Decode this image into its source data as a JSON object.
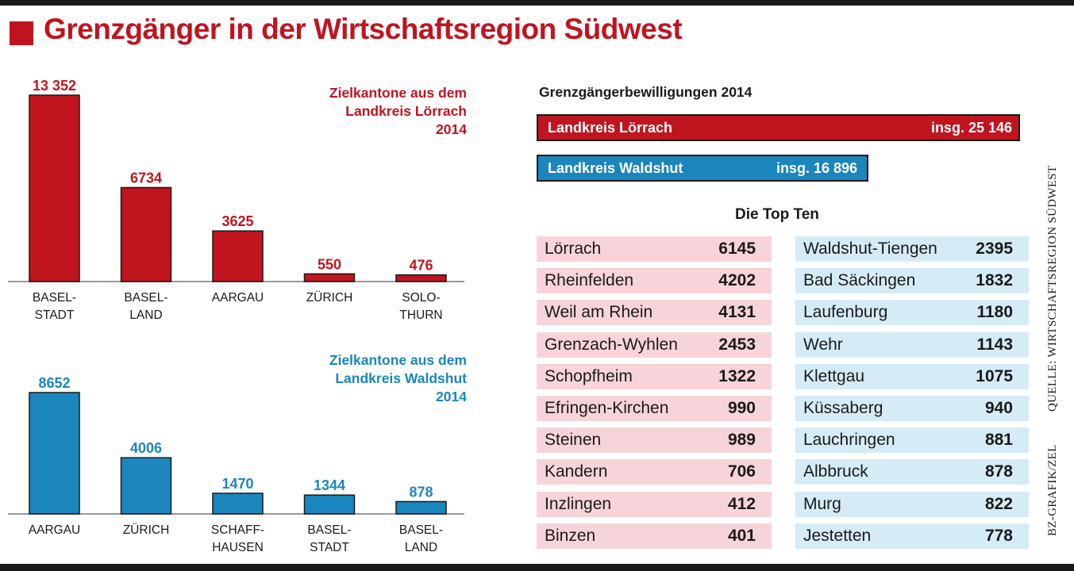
{
  "title": "Grenzgänger in der Wirtschaftsregion Südwest",
  "colors": {
    "red": "#c0141f",
    "blue": "#1a86bd",
    "pink": "#f7d4da",
    "lightblue": "#d5ecf7"
  },
  "chart_data": [
    {
      "type": "bar",
      "title_lines": [
        "Zielkantone aus dem",
        "Landkreis Lörrach",
        "2014"
      ],
      "categories": [
        [
          "BASEL-",
          "STADT"
        ],
        [
          "BASEL-",
          "LAND"
        ],
        [
          "AARGAU"
        ],
        [
          "ZÜRICH"
        ],
        [
          "SOLO-",
          "THURN"
        ]
      ],
      "values": [
        13352,
        6734,
        3625,
        550,
        476
      ],
      "value_labels": [
        "13 352",
        "6734",
        "3625",
        "550",
        "476"
      ],
      "color": "#c0141f"
    },
    {
      "type": "bar",
      "title_lines": [
        "Zielkantone aus dem",
        "Landkreis Waldshut",
        "2014"
      ],
      "categories": [
        [
          "AARGAU"
        ],
        [
          "ZÜRICH"
        ],
        [
          "SCHAFF-",
          "HAUSEN"
        ],
        [
          "BASEL-",
          "STADT"
        ],
        [
          "BASEL-",
          "LAND"
        ]
      ],
      "values": [
        8652,
        4006,
        1470,
        1344,
        878
      ],
      "value_labels": [
        "8652",
        "4006",
        "1470",
        "1344",
        "878"
      ],
      "color": "#1a86bd"
    },
    {
      "type": "bar",
      "title": "Grenzgängerbewilligungen 2014",
      "categories": [
        "Landkreis Lörrach",
        "Landkreis Waldshut"
      ],
      "values": [
        25146,
        16896
      ],
      "value_labels": [
        "insg. 25 146",
        "insg. 16 896"
      ]
    },
    {
      "type": "table",
      "title": "Die Top Ten",
      "tables": [
        {
          "region": "Landkreis Lörrach",
          "rows": [
            {
              "name": "Lörrach",
              "value": "6145"
            },
            {
              "name": "Rheinfelden",
              "value": "4202"
            },
            {
              "name": "Weil am Rhein",
              "value": "4131"
            },
            {
              "name": "Grenzach-Wyhlen",
              "value": "2453"
            },
            {
              "name": "Schopfheim",
              "value": "1322"
            },
            {
              "name": "Efringen-Kirchen",
              "value": "990"
            },
            {
              "name": "Steinen",
              "value": "989"
            },
            {
              "name": "Kandern",
              "value": "706"
            },
            {
              "name": "Inzlingen",
              "value": "412"
            },
            {
              "name": "Binzen",
              "value": "401"
            }
          ]
        },
        {
          "region": "Landkreis Waldshut",
          "rows": [
            {
              "name": "Waldshut-Tiengen",
              "value": "2395"
            },
            {
              "name": "Bad Säckingen",
              "value": "1832"
            },
            {
              "name": "Laufenburg",
              "value": "1180"
            },
            {
              "name": "Wehr",
              "value": "1143"
            },
            {
              "name": "Klettgau",
              "value": "1075"
            },
            {
              "name": "Küssaberg",
              "value": "940"
            },
            {
              "name": "Lauchringen",
              "value": "881"
            },
            {
              "name": "Albbruck",
              "value": "878"
            },
            {
              "name": "Murg",
              "value": "822"
            },
            {
              "name": "Jestetten",
              "value": "778"
            }
          ]
        }
      ]
    }
  ],
  "source": "QUELLE: WIRTSCHAFTSREGION SÜDWEST",
  "credit": "BZ-GRAFIK/ZEL"
}
